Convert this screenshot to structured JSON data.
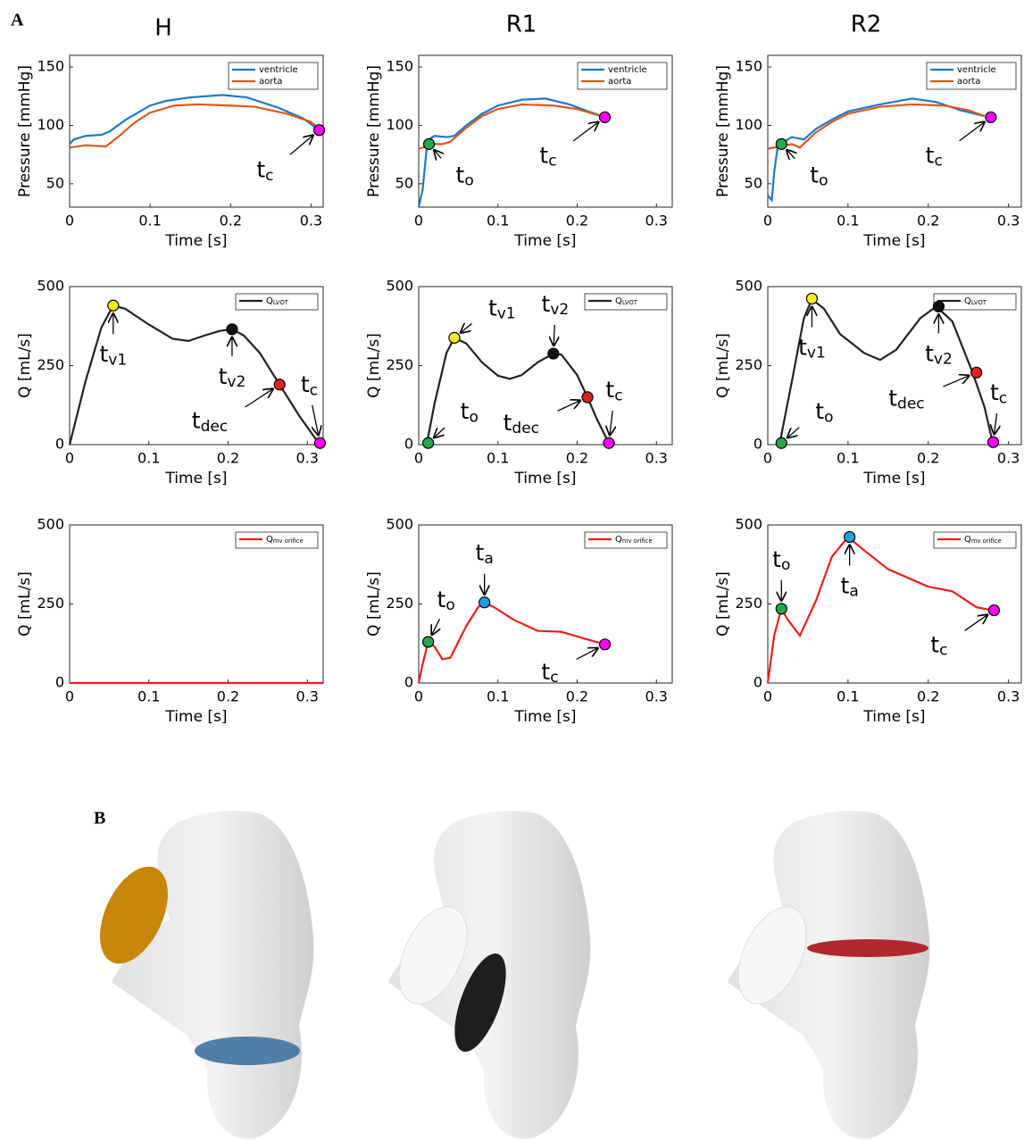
{
  "panel_labels": [
    "A",
    "B"
  ],
  "column_titles": [
    "H",
    "R1",
    "R2"
  ],
  "chart_data": [
    {
      "type": "line",
      "ylabel": "Pressure [mmHg]",
      "xlabel": "Time [s]",
      "xlim": [
        0,
        0.315
      ],
      "ylim": [
        30,
        160
      ],
      "xticks": [
        0,
        0.1,
        0.2,
        0.3
      ],
      "yticks": [
        50,
        100,
        150
      ],
      "series": [
        {
          "name": "ventricle",
          "color": "#1f77c8",
          "x": [
            0,
            0.005,
            0.02,
            0.04,
            0.05,
            0.07,
            0.1,
            0.12,
            0.15,
            0.19,
            0.22,
            0.26,
            0.29,
            0.31
          ],
          "values": [
            84,
            88,
            91,
            92,
            95,
            105,
            117,
            121,
            124,
            126,
            124,
            115,
            106,
            96
          ]
        },
        {
          "name": "aorta",
          "color": "#e0561c",
          "x": [
            0,
            0.02,
            0.045,
            0.06,
            0.08,
            0.1,
            0.13,
            0.16,
            0.2,
            0.23,
            0.27,
            0.3,
            0.31
          ],
          "values": [
            81,
            83,
            82,
            90,
            102,
            111,
            117,
            118,
            117,
            116,
            110,
            103,
            97
          ]
        }
      ],
      "markers": [
        {
          "x": 0.31,
          "y": 96,
          "color": "#ff00ff",
          "label": "t",
          "sub": "c"
        }
      ]
    },
    {
      "type": "line",
      "ylabel": "Pressure [mmHg]",
      "xlabel": "Time [s]",
      "xlim": [
        0,
        0.32
      ],
      "ylim": [
        30,
        160
      ],
      "xticks": [
        0,
        0.1,
        0.2,
        0.3
      ],
      "yticks": [
        50,
        100,
        150
      ],
      "series": [
        {
          "name": "ventricle",
          "color": "#1f77c8",
          "x": [
            0,
            0.005,
            0.01,
            0.015,
            0.02,
            0.035,
            0.045,
            0.06,
            0.08,
            0.1,
            0.13,
            0.16,
            0.19,
            0.21,
            0.235
          ],
          "values": [
            30,
            45,
            80,
            89,
            91,
            90,
            91,
            100,
            110,
            117,
            122,
            123,
            118,
            113,
            107
          ]
        },
        {
          "name": "aorta",
          "color": "#e0561c",
          "x": [
            0,
            0.01,
            0.015,
            0.03,
            0.04,
            0.06,
            0.08,
            0.1,
            0.13,
            0.17,
            0.2,
            0.235
          ],
          "values": [
            80,
            82,
            84,
            84,
            86,
            98,
            108,
            114,
            118,
            117,
            114,
            107
          ]
        }
      ],
      "markers": [
        {
          "x": 0.013,
          "y": 84,
          "color": "#22a84a",
          "label": "t",
          "sub": "o"
        },
        {
          "x": 0.235,
          "y": 107,
          "color": "#ff00ff",
          "label": "t",
          "sub": "c"
        }
      ]
    },
    {
      "type": "line",
      "ylabel": "Pressure [mmHg]",
      "xlabel": "Time [s]",
      "xlim": [
        0,
        0.316
      ],
      "ylim": [
        30,
        160
      ],
      "xticks": [
        0,
        0.1,
        0.2,
        0.3
      ],
      "yticks": [
        50,
        100,
        150
      ],
      "series": [
        {
          "name": "ventricle",
          "color": "#1f77c8",
          "x": [
            0,
            0.005,
            0.008,
            0.012,
            0.015,
            0.03,
            0.045,
            0.06,
            0.08,
            0.1,
            0.14,
            0.18,
            0.21,
            0.24,
            0.27
          ],
          "values": [
            40,
            36,
            60,
            80,
            84,
            90,
            88,
            97,
            105,
            112,
            118,
            123,
            120,
            113,
            108
          ]
        },
        {
          "name": "aorta",
          "color": "#e0561c",
          "x": [
            0,
            0.015,
            0.03,
            0.04,
            0.06,
            0.08,
            0.1,
            0.14,
            0.18,
            0.22,
            0.25,
            0.27
          ],
          "values": [
            80,
            82,
            84,
            81,
            94,
            103,
            110,
            116,
            118,
            117,
            113,
            108
          ]
        }
      ],
      "markers": [
        {
          "x": 0.017,
          "y": 84,
          "color": "#22a84a",
          "label": "t",
          "sub": "o"
        },
        {
          "x": 0.278,
          "y": 107,
          "color": "#ff00ff",
          "label": "t",
          "sub": "c"
        }
      ]
    },
    {
      "type": "line",
      "ylabel": "Q [mL/s]",
      "xlabel": "Time [s]",
      "xlim": [
        0,
        0.32
      ],
      "ylim": [
        0,
        500
      ],
      "xticks": [
        0,
        0.1,
        0.2,
        0.3
      ],
      "yticks": [
        0,
        250,
        500
      ],
      "series": [
        {
          "name": "Q",
          "name_sub": "LVOT",
          "color": "#222222",
          "x": [
            0,
            0.02,
            0.04,
            0.055,
            0.07,
            0.1,
            0.13,
            0.15,
            0.17,
            0.19,
            0.205,
            0.22,
            0.24,
            0.265,
            0.29,
            0.31,
            0.316
          ],
          "values": [
            0,
            200,
            370,
            440,
            430,
            380,
            335,
            328,
            345,
            360,
            365,
            345,
            290,
            190,
            90,
            20,
            5
          ]
        }
      ],
      "markers": [
        {
          "x": 0.055,
          "y": 440,
          "color": "#ffee22",
          "label": "t",
          "sub": "v1"
        },
        {
          "x": 0.205,
          "y": 365,
          "color": "#111111",
          "label": "t",
          "sub": "v2"
        },
        {
          "x": 0.265,
          "y": 190,
          "color": "#e02020",
          "label": "t",
          "sub": "dec"
        },
        {
          "x": 0.316,
          "y": 5,
          "color": "#ff00ff",
          "label": "t",
          "sub": "c"
        }
      ]
    },
    {
      "type": "line",
      "ylabel": "Q [mL/s]",
      "xlabel": "Time [s]",
      "xlim": [
        0,
        0.32
      ],
      "ylim": [
        0,
        500
      ],
      "xticks": [
        0,
        0.1,
        0.2,
        0.3
      ],
      "yticks": [
        0,
        250,
        500
      ],
      "series": [
        {
          "name": "Q",
          "name_sub": "LVOT",
          "color": "#222222",
          "x": [
            0.01,
            0.02,
            0.035,
            0.045,
            0.06,
            0.08,
            0.1,
            0.115,
            0.13,
            0.15,
            0.17,
            0.18,
            0.2,
            0.213,
            0.225,
            0.24
          ],
          "values": [
            0,
            130,
            290,
            338,
            320,
            260,
            218,
            208,
            220,
            260,
            288,
            285,
            220,
            150,
            80,
            5
          ]
        }
      ],
      "markers": [
        {
          "x": 0.012,
          "y": 5,
          "color": "#22a84a",
          "label": "t",
          "sub": "o"
        },
        {
          "x": 0.045,
          "y": 338,
          "color": "#ffee22",
          "label": "t",
          "sub": "v1"
        },
        {
          "x": 0.17,
          "y": 288,
          "color": "#111111",
          "label": "t",
          "sub": "v2"
        },
        {
          "x": 0.213,
          "y": 150,
          "color": "#e02020",
          "label": "t",
          "sub": "dec"
        },
        {
          "x": 0.24,
          "y": 5,
          "color": "#ff00ff",
          "label": "t",
          "sub": "c"
        }
      ]
    },
    {
      "type": "line",
      "ylabel": "Q [mL/s]",
      "xlabel": "Time [s]",
      "xlim": [
        0,
        0.316
      ],
      "ylim": [
        0,
        500
      ],
      "xticks": [
        0,
        0.1,
        0.2,
        0.3
      ],
      "yticks": [
        0,
        250,
        500
      ],
      "series": [
        {
          "name": "Q",
          "name_sub": "LVOT",
          "color": "#222222",
          "x": [
            0.015,
            0.03,
            0.045,
            0.055,
            0.07,
            0.09,
            0.12,
            0.14,
            0.16,
            0.19,
            0.21,
            0.23,
            0.255,
            0.27,
            0.28
          ],
          "values": [
            5,
            200,
            400,
            460,
            430,
            350,
            290,
            268,
            300,
            400,
            437,
            390,
            230,
            120,
            10
          ]
        }
      ],
      "markers": [
        {
          "x": 0.017,
          "y": 5,
          "color": "#22a84a",
          "label": "t",
          "sub": "o"
        },
        {
          "x": 0.055,
          "y": 462,
          "color": "#ffee22",
          "label": "t",
          "sub": "v1"
        },
        {
          "x": 0.213,
          "y": 437,
          "color": "#111111",
          "label": "t",
          "sub": "v2"
        },
        {
          "x": 0.26,
          "y": 228,
          "color": "#e02020",
          "label": "t",
          "sub": "dec"
        },
        {
          "x": 0.281,
          "y": 8,
          "color": "#ff00ff",
          "label": "t",
          "sub": "c"
        }
      ]
    },
    {
      "type": "line",
      "ylabel": "Q [mL/s]",
      "xlabel": "Time [s]",
      "xlim": [
        0,
        0.32
      ],
      "ylim": [
        0,
        500
      ],
      "xticks": [
        0,
        0.1,
        0.2,
        0.3
      ],
      "yticks": [
        0,
        250,
        500
      ],
      "series": [
        {
          "name": "Q",
          "name_sub": "mv orifice",
          "color": "#ee1c1c",
          "x": [
            0,
            0.32
          ],
          "values": [
            0,
            0
          ]
        }
      ],
      "markers": []
    },
    {
      "type": "line",
      "ylabel": "Q [mL/s]",
      "xlabel": "Time [s]",
      "xlim": [
        0,
        0.32
      ],
      "ylim": [
        0,
        500
      ],
      "xticks": [
        0,
        0.1,
        0.2,
        0.3
      ],
      "yticks": [
        0,
        250,
        500
      ],
      "series": [
        {
          "name": "Q",
          "name_sub": "mv orifice",
          "color": "#ee1c1c",
          "x": [
            0,
            0.005,
            0.012,
            0.02,
            0.03,
            0.04,
            0.06,
            0.075,
            0.083,
            0.095,
            0.12,
            0.15,
            0.18,
            0.21,
            0.235
          ],
          "values": [
            0,
            60,
            130,
            115,
            75,
            80,
            180,
            240,
            255,
            240,
            200,
            165,
            162,
            140,
            122
          ]
        }
      ],
      "markers": [
        {
          "x": 0.012,
          "y": 130,
          "color": "#22a84a",
          "label": "t",
          "sub": "o"
        },
        {
          "x": 0.083,
          "y": 255,
          "color": "#1fa0e0",
          "label": "t",
          "sub": "a"
        },
        {
          "x": 0.235,
          "y": 122,
          "color": "#ff00ff",
          "label": "t",
          "sub": "c"
        }
      ]
    },
    {
      "type": "line",
      "ylabel": "Q [mL/s]",
      "xlabel": "Time [s]",
      "xlim": [
        0,
        0.316
      ],
      "ylim": [
        0,
        500
      ],
      "xticks": [
        0,
        0.1,
        0.2,
        0.3
      ],
      "yticks": [
        0,
        250,
        500
      ],
      "series": [
        {
          "name": "Q",
          "name_sub": "mv orifice",
          "color": "#ee1c1c",
          "x": [
            0,
            0.008,
            0.017,
            0.025,
            0.04,
            0.06,
            0.08,
            0.1,
            0.12,
            0.15,
            0.2,
            0.23,
            0.26,
            0.28
          ],
          "values": [
            0,
            150,
            235,
            200,
            150,
            260,
            400,
            462,
            420,
            360,
            305,
            290,
            240,
            230
          ]
        }
      ],
      "markers": [
        {
          "x": 0.017,
          "y": 235,
          "color": "#22a84a",
          "label": "t",
          "sub": "o"
        },
        {
          "x": 0.102,
          "y": 462,
          "color": "#1fa0e0",
          "label": "t",
          "sub": "a"
        },
        {
          "x": 0.282,
          "y": 230,
          "color": "#ff00ff",
          "label": "t",
          "sub": "c"
        }
      ]
    }
  ]
}
